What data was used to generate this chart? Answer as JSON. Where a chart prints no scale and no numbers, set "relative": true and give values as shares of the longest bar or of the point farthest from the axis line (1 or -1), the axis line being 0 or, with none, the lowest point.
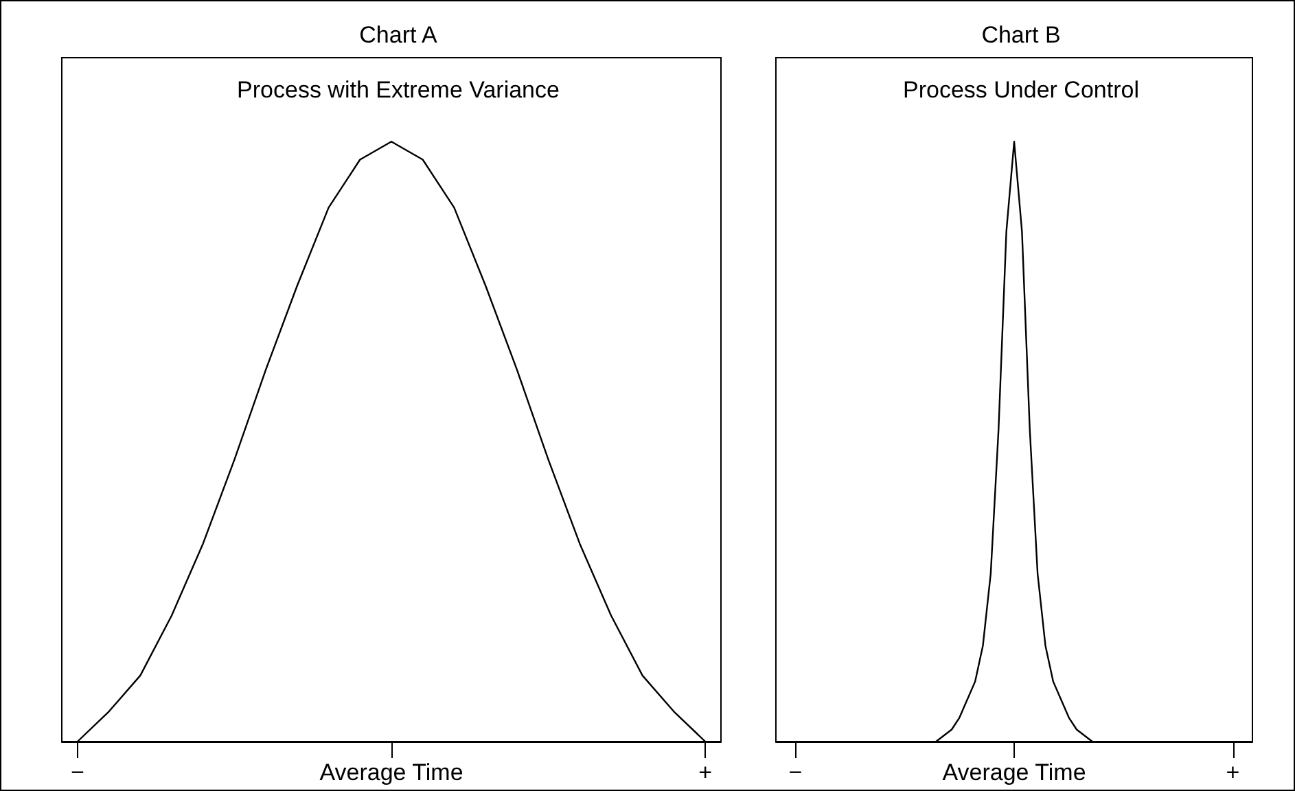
{
  "chart_data": [
    {
      "type": "line",
      "title": "Chart A",
      "subtitle": "Process with Extreme Variance",
      "relative": true,
      "marker": "none",
      "line_style": "solid",
      "categories": [
        "−",
        null,
        null,
        null,
        null,
        null,
        null,
        null,
        null,
        null,
        "Average Time",
        null,
        null,
        null,
        null,
        null,
        null,
        null,
        null,
        null,
        "+"
      ],
      "series": [
        {
          "color": "#000000",
          "values": [
            0,
            0.05,
            0.11,
            0.21,
            0.33,
            0.47,
            0.62,
            0.76,
            0.89,
            0.97,
            1,
            0.97,
            0.89,
            0.76,
            0.62,
            0.47,
            0.33,
            0.21,
            0.11,
            0.05,
            0
          ]
        }
      ]
    },
    {
      "type": "line",
      "title": "Chart B",
      "subtitle": "Process Under Control",
      "relative": true,
      "marker": "none",
      "line_style": "solid",
      "categories": [
        null,
        null,
        "−",
        null,
        null,
        null,
        null,
        null,
        null,
        null,
        null,
        null,
        null,
        null,
        null,
        null,
        null,
        null,
        null,
        null,
        null,
        null,
        null,
        null,
        null,
        null,
        null,
        null,
        null,
        null,
        "Average Time",
        null,
        null,
        null,
        null,
        null,
        null,
        null,
        null,
        null,
        null,
        null,
        null,
        null,
        null,
        null,
        null,
        null,
        null,
        null,
        null,
        null,
        null,
        null,
        null,
        null,
        null,
        null,
        "+",
        null,
        null
      ],
      "series": [
        {
          "color": "#000000",
          "values": [
            null,
            null,
            null,
            null,
            null,
            null,
            null,
            null,
            null,
            null,
            null,
            null,
            null,
            null,
            null,
            null,
            null,
            null,
            null,
            null,
            0,
            0.01,
            0.02,
            0.04,
            0.07,
            0.1,
            0.16,
            0.28,
            0.52,
            0.85,
            1,
            0.85,
            0.52,
            0.28,
            0.16,
            0.1,
            0.07,
            0.04,
            0.02,
            0.01,
            0,
            null,
            null,
            null,
            null,
            null,
            null,
            null,
            null,
            null,
            null,
            null,
            null,
            null,
            null,
            null,
            null,
            null,
            null,
            null,
            null
          ]
        }
      ]
    }
  ]
}
